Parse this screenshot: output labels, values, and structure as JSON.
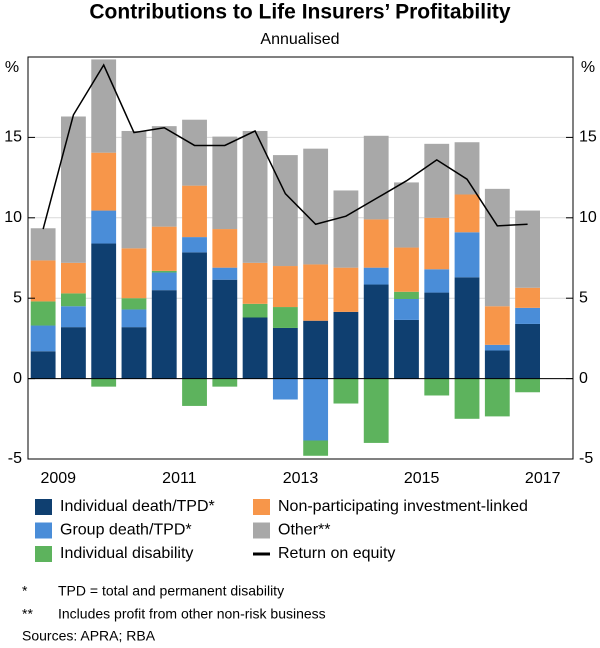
{
  "chart_data": {
    "type": "bar",
    "stacked": true,
    "title": "Contributions to Life Insurers’ Profitability",
    "subtitle": "Annualised",
    "y_unit": "%",
    "x": [
      2009.25,
      2009.75,
      2010.25,
      2010.75,
      2011.25,
      2011.75,
      2012.25,
      2012.75,
      2013.25,
      2013.75,
      2014.25,
      2014.75,
      2015.25,
      2015.75,
      2016.25,
      2016.75,
      2017.25
    ],
    "xlim": [
      2009,
      2018
    ],
    "xticks": [
      {
        "value": 2009.5,
        "label": "2009"
      },
      {
        "value": 2011.5,
        "label": "2011"
      },
      {
        "value": 2013.5,
        "label": "2013"
      },
      {
        "value": 2015.5,
        "label": "2015"
      },
      {
        "value": 2017.5,
        "label": "2017"
      }
    ],
    "ylim": [
      -5,
      20
    ],
    "yticks": [
      -5,
      0,
      5,
      10,
      15
    ],
    "y2lim": [
      -5,
      20
    ],
    "y2ticks": [
      -5,
      0,
      5,
      10,
      15
    ],
    "grid": true,
    "series": [
      {
        "name": "Individual death/TPD*",
        "color": "#0f3f70",
        "values": [
          1.7,
          3.2,
          8.4,
          3.2,
          5.5,
          7.85,
          6.15,
          3.8,
          3.15,
          3.6,
          4.15,
          5.85,
          3.65,
          5.35,
          6.3,
          1.75,
          3.4
        ]
      },
      {
        "name": "Group death/TPD*",
        "color": "#4a8dd8",
        "values": [
          1.6,
          1.3,
          2.05,
          1.1,
          1.1,
          0.95,
          0.75,
          0,
          -1.3,
          -3.85,
          0,
          1.05,
          1.3,
          1.45,
          2.8,
          0.35,
          1.0
        ]
      },
      {
        "name": "Individual disability",
        "color": "#5db35d",
        "values": [
          1.5,
          0.8,
          -0.5,
          0.7,
          0.1,
          -1.7,
          -0.5,
          0.85,
          1.3,
          -0.95,
          -1.55,
          -4.0,
          0.45,
          -1.05,
          -2.5,
          -2.35,
          -0.85
        ]
      },
      {
        "name": "Non-participating investment-linked",
        "color": "#f7964a",
        "values": [
          2.55,
          1.9,
          3.6,
          3.1,
          2.75,
          3.2,
          2.4,
          2.55,
          2.55,
          3.5,
          2.75,
          3.0,
          2.75,
          3.2,
          2.35,
          2.4,
          1.25
        ]
      },
      {
        "name": "Other**",
        "color": "#a8a8a8",
        "values": [
          2.0,
          9.1,
          5.8,
          7.3,
          6.25,
          4.1,
          5.75,
          8.2,
          6.9,
          7.2,
          4.8,
          5.2,
          4.05,
          4.6,
          3.25,
          7.3,
          4.8
        ]
      },
      {
        "name": "Return on equity",
        "type": "line",
        "color": "#000000",
        "values": [
          9.3,
          16.4,
          19.5,
          15.3,
          15.6,
          14.5,
          14.5,
          15.4,
          11.5,
          9.6,
          10.1,
          11.2,
          12.3,
          13.6,
          12.4,
          9.5,
          9.6
        ]
      }
    ],
    "footnotes": [
      {
        "marker": "*",
        "text": "TPD = total and permanent disability"
      },
      {
        "marker": "**",
        "text": "Includes profit from other non-risk business"
      }
    ],
    "source": "Sources: APRA; RBA"
  }
}
